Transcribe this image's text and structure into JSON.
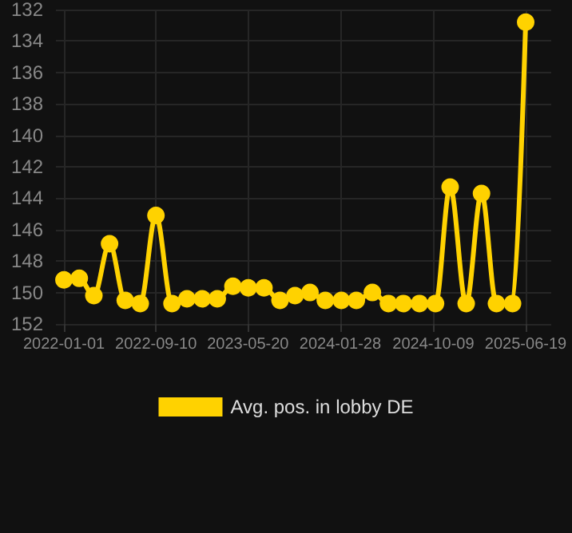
{
  "chart_data": {
    "type": "line",
    "x": [
      "2022-01-01",
      "2022-02-12",
      "2022-03-24",
      "2022-05-06",
      "2022-06-18",
      "2022-07-29",
      "2022-09-10",
      "2022-10-24",
      "2022-12-04",
      "2023-01-15",
      "2023-02-25",
      "2023-04-09",
      "2023-05-21",
      "2023-07-03",
      "2023-08-16",
      "2023-09-26",
      "2023-11-06",
      "2023-12-18",
      "2024-01-31",
      "2024-03-12",
      "2024-04-25",
      "2024-06-08",
      "2024-07-19",
      "2024-09-01",
      "2024-10-15",
      "2024-11-24",
      "2025-01-07",
      "2025-02-18",
      "2025-03-31",
      "2025-05-14",
      "2025-06-19"
    ],
    "series": [
      {
        "name": "Avg. pos. in lobby DE",
        "color": "#ffd200",
        "values": [
          149.2,
          149.1,
          150.2,
          146.9,
          150.5,
          150.7,
          145.1,
          150.7,
          150.4,
          150.4,
          150.4,
          149.6,
          149.7,
          149.7,
          150.5,
          150.2,
          150.0,
          150.5,
          150.5,
          150.5,
          150.0,
          150.7,
          150.7,
          150.7,
          150.7,
          143.3,
          150.7,
          143.7,
          150.7,
          150.7,
          132.8
        ]
      }
    ],
    "xlim": [
      "2021-12-10",
      "2025-08-28"
    ],
    "xticks": [
      "2022-01-01",
      "2022-09-10",
      "2023-05-20",
      "2024-01-28",
      "2024-10-09",
      "2025-06-19"
    ],
    "ylim": [
      152,
      132
    ],
    "yticks": [
      132,
      134,
      136,
      138,
      140,
      142,
      144,
      146,
      148,
      150,
      152
    ],
    "grid": true,
    "legend": "bottom",
    "marker": "circle",
    "line_style": "solid"
  }
}
